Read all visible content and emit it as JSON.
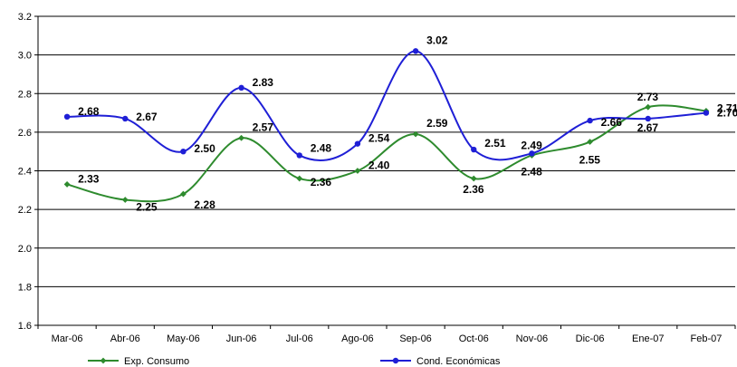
{
  "chart_data": {
    "type": "line",
    "categories": [
      "Mar-06",
      "Abr-06",
      "May-06",
      "Jun-06",
      "Jul-06",
      "Ago-06",
      "Sep-06",
      "Oct-06",
      "Nov-06",
      "Dic-06",
      "Ene-07",
      "Feb-07"
    ],
    "ylim": [
      1.6,
      3.2
    ],
    "yticks": [
      "1.6",
      "1.8",
      "2.0",
      "2.2",
      "2.4",
      "2.6",
      "2.8",
      "3.0",
      "3.2"
    ],
    "grid": true,
    "smooth": true,
    "legend_position": "bottom",
    "series": [
      {
        "name": "Exp. Consumo",
        "color": "#2e8b2e",
        "marker": "diamond",
        "values": [
          2.33,
          2.25,
          2.28,
          2.57,
          2.36,
          2.4,
          2.59,
          2.36,
          2.48,
          2.55,
          2.73,
          2.71
        ],
        "labels": [
          "2.33",
          "2.25",
          "2.28",
          "2.57",
          "2.36",
          "2.40",
          "2.59",
          "2.36",
          "2.48",
          "2.55",
          "2.73",
          "2.71"
        ]
      },
      {
        "name": "Cond. Económicas",
        "color": "#1f1fd6",
        "marker": "circle",
        "values": [
          2.68,
          2.67,
          2.5,
          2.83,
          2.48,
          2.54,
          3.02,
          2.51,
          2.49,
          2.66,
          2.67,
          2.7
        ],
        "labels": [
          "2.68",
          "2.67",
          "2.50",
          "2.83",
          "2.48",
          "2.54",
          "3.02",
          "2.51",
          "2.49",
          "2.66",
          "2.67",
          "2.70"
        ]
      }
    ]
  }
}
